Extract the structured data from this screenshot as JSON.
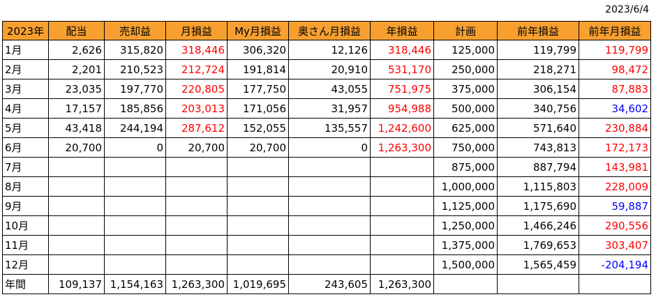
{
  "date": "2023/6/4",
  "headers": [
    "2023年",
    "配当",
    "売却益",
    "月損益",
    "My月損益",
    "奥さん月損益",
    "年損益",
    "計画",
    "前年損益",
    "前年月損益"
  ],
  "rows": [
    {
      "month": "1月",
      "dividend": "2,626",
      "sale_profit": "315,820",
      "monthly": "318,446",
      "my_monthly": "306,320",
      "wife_monthly": "12,126",
      "annual": "318,446",
      "plan": "125,000",
      "prev_year": "119,799",
      "prev_monthly": "119,799"
    },
    {
      "month": "2月",
      "dividend": "2,201",
      "sale_profit": "210,523",
      "monthly": "212,724",
      "my_monthly": "191,814",
      "wife_monthly": "20,910",
      "annual": "531,170",
      "plan": "250,000",
      "prev_year": "218,271",
      "prev_monthly": "98,472"
    },
    {
      "month": "3月",
      "dividend": "23,035",
      "sale_profit": "197,770",
      "monthly": "220,805",
      "my_monthly": "177,750",
      "wife_monthly": "43,055",
      "annual": "751,975",
      "plan": "375,000",
      "prev_year": "306,154",
      "prev_monthly": "87,883"
    },
    {
      "month": "4月",
      "dividend": "17,157",
      "sale_profit": "185,856",
      "monthly": "203,013",
      "my_monthly": "171,056",
      "wife_monthly": "31,957",
      "annual": "954,988",
      "plan": "500,000",
      "prev_year": "340,756",
      "prev_monthly": "34,602"
    },
    {
      "month": "5月",
      "dividend": "43,418",
      "sale_profit": "244,194",
      "monthly": "287,612",
      "my_monthly": "152,055",
      "wife_monthly": "135,557",
      "annual": "1,242,600",
      "plan": "625,000",
      "prev_year": "571,640",
      "prev_monthly": "230,884"
    },
    {
      "month": "6月",
      "dividend": "20,700",
      "sale_profit": "0",
      "monthly": "20,700",
      "my_monthly": "20,700",
      "wife_monthly": "0",
      "annual": "1,263,300",
      "plan": "750,000",
      "prev_year": "743,813",
      "prev_monthly": "172,173"
    },
    {
      "month": "7月",
      "dividend": "",
      "sale_profit": "",
      "monthly": "",
      "my_monthly": "",
      "wife_monthly": "",
      "annual": "",
      "plan": "875,000",
      "prev_year": "887,794",
      "prev_monthly": "143,981"
    },
    {
      "month": "8月",
      "dividend": "",
      "sale_profit": "",
      "monthly": "",
      "my_monthly": "",
      "wife_monthly": "",
      "annual": "",
      "plan": "1,000,000",
      "prev_year": "1,115,803",
      "prev_monthly": "228,009"
    },
    {
      "month": "9月",
      "dividend": "",
      "sale_profit": "",
      "monthly": "",
      "my_monthly": "",
      "wife_monthly": "",
      "annual": "",
      "plan": "1,125,000",
      "prev_year": "1,175,690",
      "prev_monthly": "59,887"
    },
    {
      "month": "10月",
      "dividend": "",
      "sale_profit": "",
      "monthly": "",
      "my_monthly": "",
      "wife_monthly": "",
      "annual": "",
      "plan": "1,250,000",
      "prev_year": "1,466,246",
      "prev_monthly": "290,556"
    },
    {
      "month": "11月",
      "dividend": "",
      "sale_profit": "",
      "monthly": "",
      "my_monthly": "",
      "wife_monthly": "",
      "annual": "",
      "plan": "1,375,000",
      "prev_year": "1,769,653",
      "prev_monthly": "303,407"
    },
    {
      "month": "12月",
      "dividend": "",
      "sale_profit": "",
      "monthly": "",
      "my_monthly": "",
      "wife_monthly": "",
      "annual": "",
      "plan": "1,500,000",
      "prev_year": "1,565,459",
      "prev_monthly": "-204,194"
    }
  ],
  "total": {
    "month": "年間",
    "dividend": "109,137",
    "sale_profit": "1,154,163",
    "monthly": "1,263,300",
    "my_monthly": "1,019,695",
    "wife_monthly": "243,605",
    "annual": "1,263,300",
    "plan": "",
    "prev_year": "",
    "prev_monthly": ""
  },
  "colors": {
    "header_bg": "#f7a030",
    "red": "#ff0000",
    "blue": "#0000ff"
  },
  "red_cells": {
    "monthly": [
      0,
      1,
      2,
      3,
      4
    ],
    "annual": [
      0,
      1,
      2,
      3,
      4,
      5
    ],
    "prev_monthly": [
      0,
      1,
      2,
      4,
      5,
      6,
      7,
      9,
      10
    ]
  },
  "blue_cells": {
    "prev_monthly": [
      3,
      8,
      11
    ]
  }
}
